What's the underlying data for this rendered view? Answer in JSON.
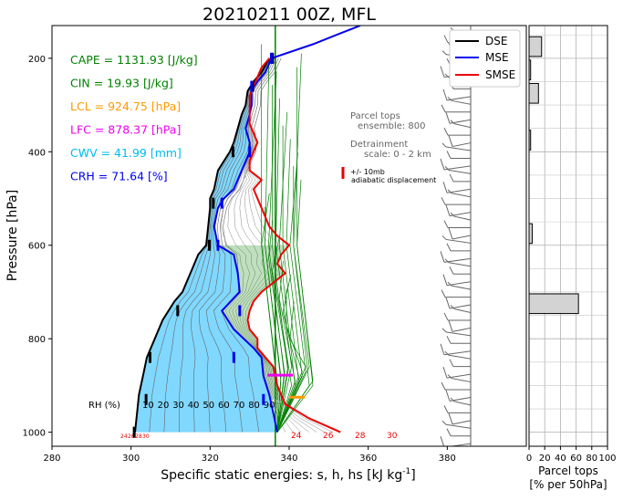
{
  "chart_data": {
    "type": "line",
    "title": "20210211 00Z, MFL",
    "xlabel": "Specific static energies: s, h, hs [kJ kg",
    "xlabel_sup": "-1",
    "xlabel_end": "]",
    "ylabel": "Pressure [hPa]",
    "xlim": [
      280,
      400
    ],
    "ylim": [
      1030,
      130
    ],
    "x_ticks": [
      "280",
      "300",
      "320",
      "340",
      "360",
      "380"
    ],
    "x_tick_values": [
      280,
      300,
      320,
      340,
      360,
      380
    ],
    "y_ticks": [
      "200",
      "400",
      "600",
      "800",
      "1000"
    ],
    "y_tick_values": [
      200,
      400,
      600,
      800,
      1000
    ],
    "y_scale": "linear",
    "grid": false,
    "legend_position": "top-right",
    "colors": {
      "dse": "#000000",
      "mse": "#0000ee",
      "smse": "#ee0000",
      "fill": "#80d8ff",
      "cape": "#008000",
      "lcl": "#ff9900",
      "lfc": "#ee00ee",
      "cwv": "#00bbee",
      "crh": "#0000ee"
    },
    "series": [
      {
        "name": "DSE",
        "color": "#000000",
        "pressure": [
          1000,
          960,
          920,
          880,
          840,
          800,
          760,
          720,
          700,
          660,
          620,
          600,
          560,
          520,
          500,
          480,
          440,
          400,
          380,
          350,
          320,
          300,
          270,
          250,
          230,
          200
        ],
        "values": [
          301,
          301.5,
          302,
          303,
          304,
          306,
          308,
          311,
          313,
          315,
          317,
          319,
          319.5,
          320,
          320,
          321,
          322,
          325,
          326,
          327,
          328,
          329,
          329.5,
          331,
          333,
          335
        ]
      },
      {
        "name": "MSE",
        "color": "#0000ee",
        "pressure": [
          1000,
          960,
          920,
          880,
          840,
          820,
          780,
          740,
          700,
          660,
          620,
          600,
          560,
          520,
          500,
          480,
          440,
          400,
          380,
          350,
          320,
          300,
          270,
          250,
          230,
          200,
          170,
          150,
          130
        ],
        "values": [
          337,
          336,
          335,
          333.5,
          333,
          331,
          326,
          323,
          327.5,
          327,
          326,
          322,
          321,
          322,
          323.5,
          326,
          328,
          330,
          330,
          329,
          330,
          330.5,
          330.5,
          332,
          334,
          335.5,
          346,
          352,
          358
        ]
      },
      {
        "name": "SMSE",
        "color": "#ee0000",
        "pressure": [
          1000,
          970,
          940,
          920,
          900,
          880,
          860,
          840,
          820,
          800,
          780,
          760,
          740,
          720,
          700,
          680,
          660,
          640,
          620,
          600,
          580,
          560,
          540,
          520,
          500,
          480,
          460,
          440,
          420,
          400,
          380,
          360,
          340,
          320,
          300,
          280,
          260,
          240,
          220,
          200
        ],
        "values": [
          353,
          345,
          339,
          338,
          337,
          336.5,
          336,
          334,
          332,
          332,
          330,
          329.5,
          330,
          331,
          333,
          336,
          339,
          337,
          338,
          340,
          337,
          335,
          334,
          333,
          332,
          331,
          333,
          330,
          330,
          331,
          332,
          331,
          330,
          330,
          330,
          330,
          331,
          332,
          333,
          335
        ]
      }
    ],
    "rh_label": "RH (%)",
    "rh_labels": [
      "10",
      "20",
      "30",
      "40",
      "50",
      "60",
      "70",
      "80",
      "90"
    ],
    "temp_labels_small": [
      "24",
      "26",
      "28",
      "30"
    ],
    "temp_labels_red": [
      "24",
      "26",
      "28",
      "30"
    ],
    "stats": [
      {
        "text": "CAPE = 1131.93 [J/kg]",
        "color": "#008000"
      },
      {
        "text": "CIN = 19.93 [J/kg]",
        "color": "#008000"
      },
      {
        "text": "LCL = 924.75 [hPa]",
        "color": "#ff9900"
      },
      {
        "text": "LFC = 878.37 [hPa]",
        "color": "#ee00ee"
      },
      {
        "text": "CWV = 41.99 [mm]",
        "color": "#00bbee"
      },
      {
        "text": "CRH = 71.64 [%]",
        "color": "#0000ee"
      }
    ],
    "parcel_note": {
      "line1": "Parcel tops",
      "line2": "ensemble: 800",
      "line3": "Detrainment",
      "line4": "scale: 0 - 2 km",
      "legend_line1": "+/- 10mb",
      "legend_line2": "adiabatic displacement"
    },
    "histogram": {
      "xlabel_line1": "Parcel tops",
      "xlabel_line2": "[% per 50hPa]",
      "x_ticks": [
        "0",
        "20",
        "40",
        "60",
        "80",
        "100"
      ],
      "x_tick_values": [
        0,
        20,
        40,
        60,
        80,
        100
      ],
      "xlim": [
        0,
        100
      ],
      "bars": [
        {
          "p_top": 150,
          "p_bot": 200,
          "value": 16
        },
        {
          "p_top": 200,
          "p_bot": 250,
          "value": 2
        },
        {
          "p_top": 250,
          "p_bot": 300,
          "value": 12
        },
        {
          "p_top": 350,
          "p_bot": 400,
          "value": 2
        },
        {
          "p_top": 550,
          "p_bot": 600,
          "value": 4
        },
        {
          "p_top": 700,
          "p_bot": 750,
          "value": 63
        }
      ]
    }
  }
}
